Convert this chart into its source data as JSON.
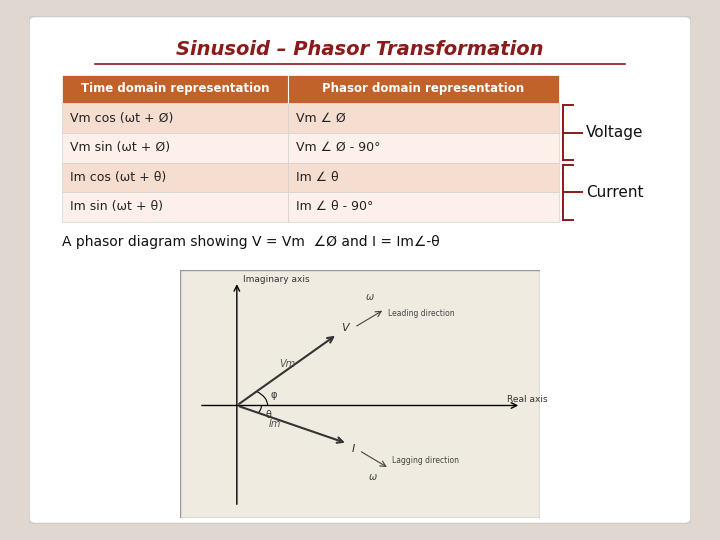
{
  "title": "Sinusoid – Phasor Transformation",
  "bg_outer": "#e0d8d0",
  "bg_inner": "#ffffff",
  "table_header_bg": "#c0622a",
  "table_header_color": "#ffffff",
  "table_row1_bg": "#f5ddd0",
  "table_row2_bg": "#fdf0ea",
  "table_col1_header": "Time domain representation",
  "table_col2_header": "Phasor domain representation",
  "rows": [
    [
      "Vm cos (ωt + Ø)",
      "Vm ∠ Ø"
    ],
    [
      "Vm sin (ωt + Ø)",
      "Vm ∠ Ø - 90°"
    ],
    [
      "Im cos (ωt + θ)",
      "Im ∠ θ"
    ],
    [
      "Im sin (ωt + θ)",
      "Im ∠ θ - 90°"
    ]
  ],
  "brace_voltage_label": "Voltage",
  "brace_current_label": "Current",
  "caption": "A phasor diagram showing V = Vm  ∠Ø and I = Im∠-θ",
  "title_color": "#8b1a1a",
  "title_fontsize": 14,
  "table_header_fontsize": 8.5,
  "table_cell_fontsize": 9,
  "caption_fontsize": 10,
  "phasor_bg": "#f0ebe0"
}
